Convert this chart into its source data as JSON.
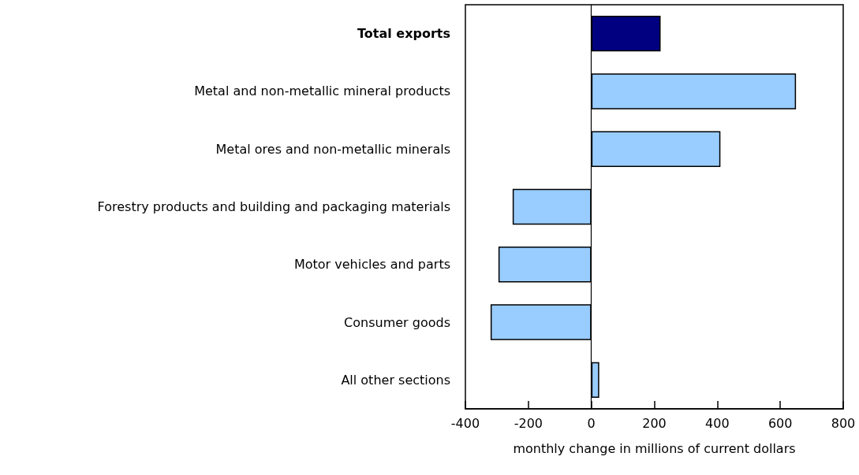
{
  "chart_data": {
    "type": "bar",
    "orientation": "horizontal",
    "xlabel": "monthly change in millions of current dollars",
    "categories": [
      "Total exports",
      "Metal and non-metallic mineral products",
      "Metal ores and non-metallic minerals",
      "Forestry products and building and packaging materials",
      "Motor vehicles and parts",
      "Consumer goods",
      "All other sections"
    ],
    "values": [
      220,
      650,
      410,
      -250,
      -295,
      -320,
      25
    ],
    "colors": [
      "#000080",
      "#99ccff",
      "#99ccff",
      "#99ccff",
      "#99ccff",
      "#99ccff",
      "#99ccff"
    ],
    "xlim": [
      -400,
      800
    ],
    "xticks": [
      -400,
      -200,
      0,
      200,
      400,
      600,
      800
    ]
  }
}
